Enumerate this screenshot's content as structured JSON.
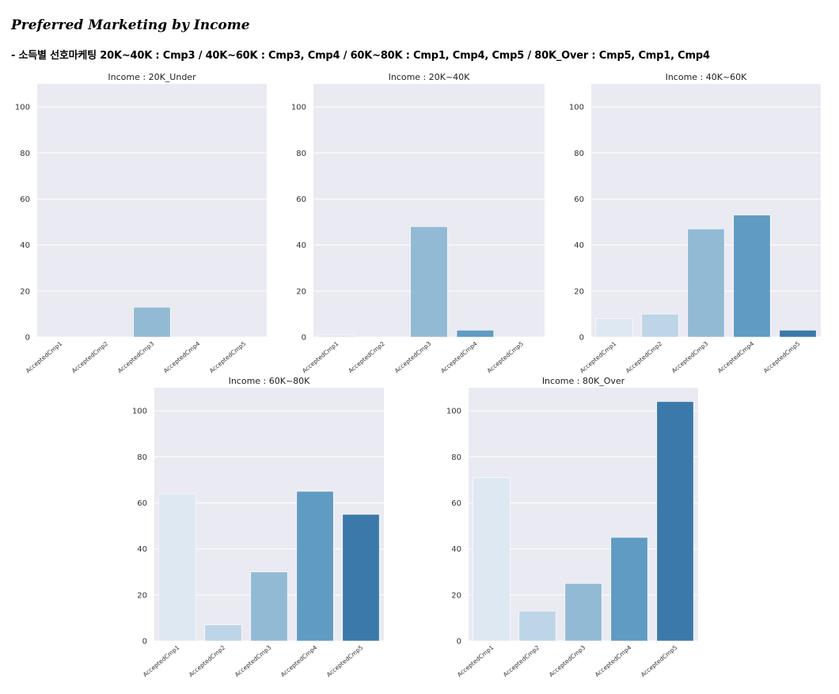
{
  "title": "Preferred Marketing by Income",
  "subtitle": "- 소득별 선호마케팅 20K~40K : Cmp3 / 40K~60K : Cmp3, Cmp4 / 60K~80K : Cmp1, Cmp4, Cmp5 / 80K_Over : Cmp5, Cmp1, Cmp4",
  "chart_data": [
    {
      "type": "bar",
      "title": "Income : 20K_Under",
      "categories": [
        "AcceptedCmp1",
        "AcceptedCmp2",
        "AcceptedCmp3",
        "AcceptedCmp4",
        "AcceptedCmp5"
      ],
      "values": [
        0,
        0,
        13,
        0,
        0
      ],
      "ylim": [
        0,
        110
      ],
      "yticks": [
        0,
        20,
        40,
        60,
        80,
        100
      ],
      "grid": true
    },
    {
      "type": "bar",
      "title": "Income : 20K~40K",
      "categories": [
        "AcceptedCmp1",
        "AcceptedCmp2",
        "AcceptedCmp3",
        "AcceptedCmp4",
        "AcceptedCmp5"
      ],
      "values": [
        1,
        0,
        48,
        3,
        0
      ],
      "ylim": [
        0,
        110
      ],
      "yticks": [
        0,
        20,
        40,
        60,
        80,
        100
      ],
      "grid": true
    },
    {
      "type": "bar",
      "title": "Income : 40K~60K",
      "categories": [
        "AcceptedCmp1",
        "AcceptedCmp2",
        "AcceptedCmp3",
        "AcceptedCmp4",
        "AcceptedCmp5"
      ],
      "values": [
        8,
        10,
        47,
        53,
        3
      ],
      "ylim": [
        0,
        110
      ],
      "yticks": [
        0,
        20,
        40,
        60,
        80,
        100
      ],
      "grid": true
    },
    {
      "type": "bar",
      "title": "Income : 60K~80K",
      "categories": [
        "AcceptedCmp1",
        "AcceptedCmp2",
        "AcceptedCmp3",
        "AcceptedCmp4",
        "AcceptedCmp5"
      ],
      "values": [
        64,
        7,
        30,
        65,
        55
      ],
      "ylim": [
        0,
        110
      ],
      "yticks": [
        0,
        20,
        40,
        60,
        80,
        100
      ],
      "grid": true
    },
    {
      "type": "bar",
      "title": "Income : 80K_Over",
      "categories": [
        "AcceptedCmp1",
        "AcceptedCmp2",
        "AcceptedCmp3",
        "AcceptedCmp4",
        "AcceptedCmp5"
      ],
      "values": [
        71,
        13,
        25,
        45,
        104
      ],
      "ylim": [
        0,
        110
      ],
      "yticks": [
        0,
        20,
        40,
        60,
        80,
        100
      ],
      "grid": true
    }
  ],
  "colors": {
    "palette": [
      "#dde8f3",
      "#bdd5e7",
      "#93bad4",
      "#5f9bc2",
      "#3b79aa"
    ],
    "plot_background": "#eaeaf2",
    "gridline": "#ffffff"
  }
}
